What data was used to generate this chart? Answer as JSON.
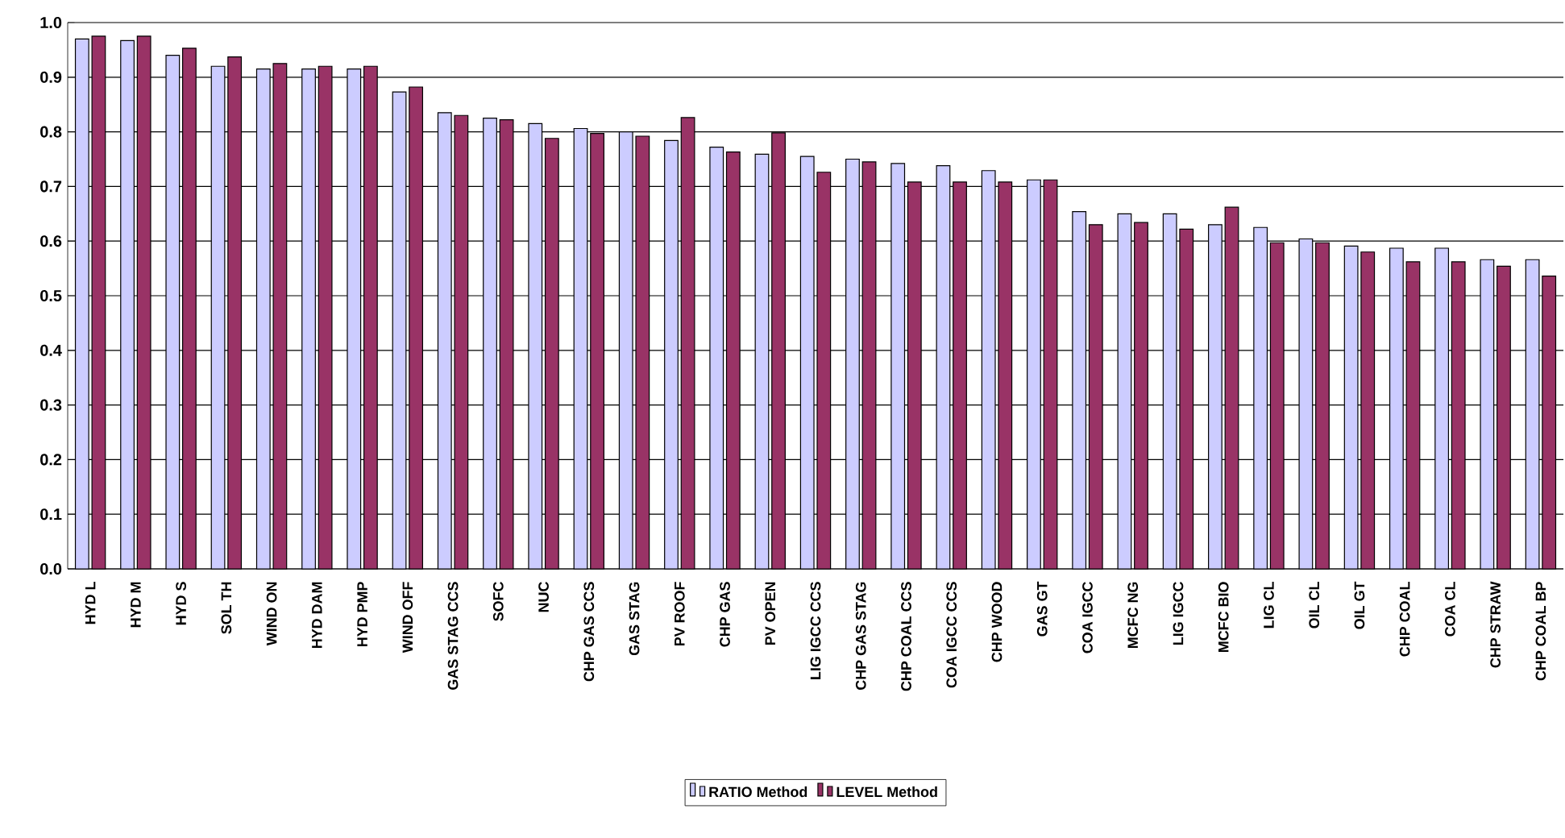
{
  "chart_data": {
    "type": "bar",
    "categories": [
      "HYD L",
      "HYD M",
      "HYD S",
      "SOL TH",
      "WIND ON",
      "HYD DAM",
      "HYD PMP",
      "WIND OFF",
      "GAS STAG CCS",
      "SOFC",
      "NUC",
      "CHP GAS CCS",
      "GAS STAG",
      "PV ROOF",
      "CHP GAS",
      "PV OPEN",
      "LIG IGCC CCS",
      "CHP GAS STAG",
      "CHP COAL CCS",
      "COA IGCC CCS",
      "CHP WOOD",
      "GAS GT",
      "COA IGCC",
      "MCFC NG",
      "LIG IGCC",
      "MCFC BIO",
      "LIG CL",
      "OIL CL",
      "OIL GT",
      "CHP COAL",
      "COA CL",
      "CHP STRAW",
      "CHP COAL BP"
    ],
    "series": [
      {
        "name": "RATIO Method",
        "color": "#ccccff",
        "values": [
          0.97,
          0.967,
          0.94,
          0.92,
          0.915,
          0.915,
          0.915,
          0.873,
          0.835,
          0.825,
          0.815,
          0.806,
          0.8,
          0.784,
          0.772,
          0.759,
          0.755,
          0.75,
          0.742,
          0.738,
          0.729,
          0.712,
          0.654,
          0.65,
          0.65,
          0.63,
          0.625,
          0.604,
          0.591,
          0.587,
          0.587,
          0.566,
          0.566
        ]
      },
      {
        "name": "LEVEL Method",
        "color": "#993366",
        "values": [
          0.975,
          0.975,
          0.953,
          0.937,
          0.925,
          0.92,
          0.92,
          0.882,
          0.83,
          0.822,
          0.788,
          0.797,
          0.792,
          0.826,
          0.763,
          0.798,
          0.726,
          0.745,
          0.708,
          0.708,
          0.708,
          0.712,
          0.63,
          0.634,
          0.622,
          0.662,
          0.597,
          0.597,
          0.58,
          0.562,
          0.562,
          0.554,
          0.536
        ]
      }
    ],
    "ylim": [
      0,
      1.0
    ],
    "yticks": [
      {
        "value": 0,
        "label": "0.0"
      },
      {
        "value": 0.1,
        "label": "0.1"
      },
      {
        "value": 0.2,
        "label": "0.2"
      },
      {
        "value": 0.3,
        "label": "0.3"
      },
      {
        "value": 0.4,
        "label": "0.4"
      },
      {
        "value": 0.5,
        "label": "0.5"
      },
      {
        "value": 0.6,
        "label": "0.6"
      },
      {
        "value": 0.7,
        "label": "0.7"
      },
      {
        "value": 0.8,
        "label": "0.8"
      },
      {
        "value": 0.9,
        "label": "0.9"
      },
      {
        "value": 1.0,
        "label": "1.0"
      }
    ],
    "grid": "y",
    "legend": "bottom"
  }
}
